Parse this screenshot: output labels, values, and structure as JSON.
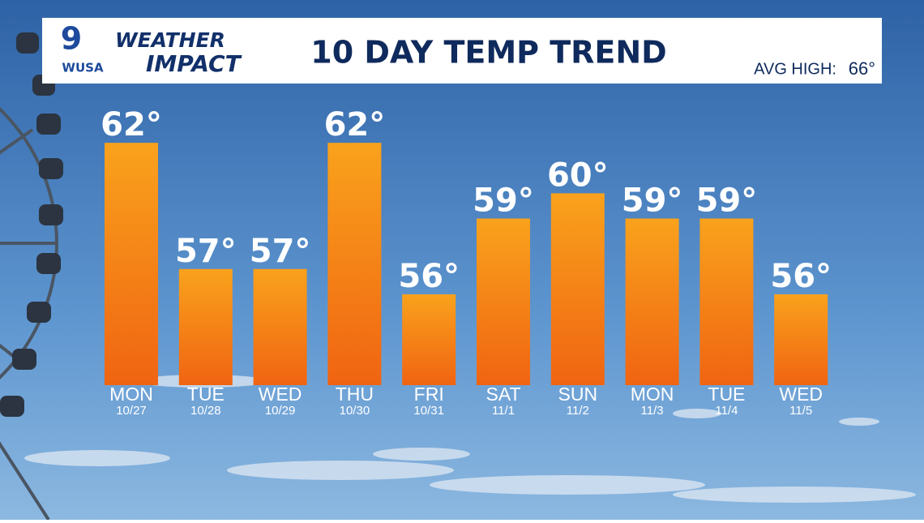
{
  "brand": {
    "channel": "9",
    "station": "WUSA",
    "show_line1": "WEATHER",
    "show_line2": "IMPACT"
  },
  "avg_high": {
    "label": "AVG HIGH:",
    "text": "66°"
  },
  "chart_data": {
    "type": "bar",
    "title": "10 DAY TEMP TREND",
    "categories": [
      "MON",
      "TUE",
      "WED",
      "THU",
      "FRI",
      "SAT",
      "SUN",
      "MON",
      "TUE",
      "WED"
    ],
    "dates": [
      "10/27",
      "10/28",
      "10/29",
      "10/30",
      "10/31",
      "11/1",
      "11/2",
      "11/3",
      "11/4",
      "11/5"
    ],
    "values": [
      62,
      57,
      57,
      62,
      56,
      59,
      60,
      59,
      59,
      56
    ],
    "value_labels": [
      "62°",
      "57°",
      "57°",
      "62°",
      "56°",
      "59°",
      "60°",
      "59°",
      "59°",
      "56°"
    ],
    "color": "#f9a21c",
    "ylim": [
      52.4,
      63
    ]
  }
}
